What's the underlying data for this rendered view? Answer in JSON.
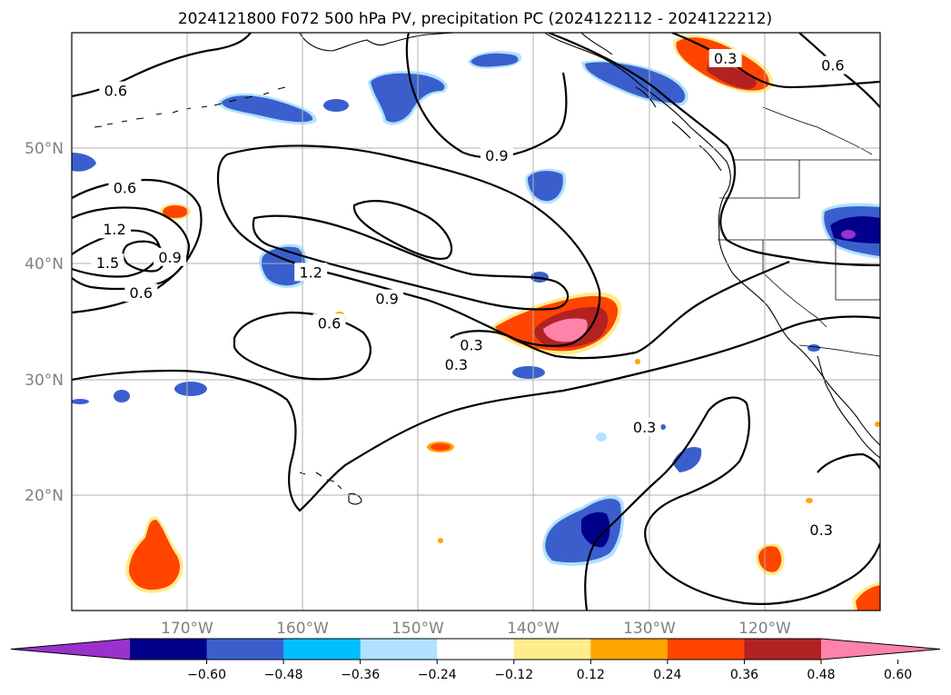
{
  "title": "2024121800 F072 500 hPa PV, precipitation PC (2024122112 - 2024122212)",
  "map": {
    "lon_range": [
      -180,
      -110
    ],
    "lat_range": [
      10,
      60
    ],
    "lon_ticks": [
      -170,
      -160,
      -150,
      -140,
      -130,
      -120
    ],
    "lat_ticks": [
      20,
      30,
      40,
      50
    ],
    "lon_labels": [
      "170°W",
      "160°W",
      "150°W",
      "140°W",
      "130°W",
      "120°W"
    ],
    "lat_labels": [
      "20°N",
      "30°N",
      "40°N",
      "50°N"
    ],
    "grid": true
  },
  "contours": {
    "field": "500 hPa PV",
    "color": "#000000",
    "labels": [
      {
        "text": "0.6",
        "lon": -176.2,
        "lat": 55.0
      },
      {
        "text": "0.3",
        "lon": -123.4,
        "lat": 57.8
      },
      {
        "text": "0.6",
        "lon": -114.1,
        "lat": 57.2
      },
      {
        "text": "0.9",
        "lon": -143.2,
        "lat": 49.4
      },
      {
        "text": "0.6",
        "lon": -175.4,
        "lat": 46.6
      },
      {
        "text": "1.2",
        "lon": -176.3,
        "lat": 43.0
      },
      {
        "text": "1.5",
        "lon": -176.9,
        "lat": 40.1
      },
      {
        "text": "0.9",
        "lon": -171.5,
        "lat": 40.6
      },
      {
        "text": "1.2",
        "lon": -159.3,
        "lat": 39.3
      },
      {
        "text": "0.9",
        "lon": -152.7,
        "lat": 37.0
      },
      {
        "text": "0.6",
        "lon": -174.0,
        "lat": 37.5
      },
      {
        "text": "0.6",
        "lon": -157.7,
        "lat": 34.9
      },
      {
        "text": "0.3",
        "lon": -145.4,
        "lat": 33.0
      },
      {
        "text": "0.3",
        "lon": -146.7,
        "lat": 31.3
      },
      {
        "text": "0.3",
        "lon": -130.4,
        "lat": 25.9
      },
      {
        "text": "0.3",
        "lon": -115.1,
        "lat": 17.0
      }
    ]
  },
  "shading": {
    "field": "precipitation PC",
    "levels": [
      -0.6,
      -0.48,
      -0.36,
      -0.24,
      -0.12,
      0.12,
      0.24,
      0.36,
      0.48,
      0.6
    ],
    "colors": [
      "#9932cc",
      "#00008b",
      "#3a5fcd",
      "#00bfff",
      "#b0e2ff",
      "#ffffff",
      "#ffec8b",
      "#ffa500",
      "#ff4500",
      "#b22222",
      "#ff82ab"
    ]
  },
  "colorbar": {
    "tick_labels": [
      "−0.60",
      "−0.48",
      "−0.36",
      "−0.24",
      "−0.12",
      "0.12",
      "0.24",
      "0.36",
      "0.48",
      "0.60"
    ]
  }
}
